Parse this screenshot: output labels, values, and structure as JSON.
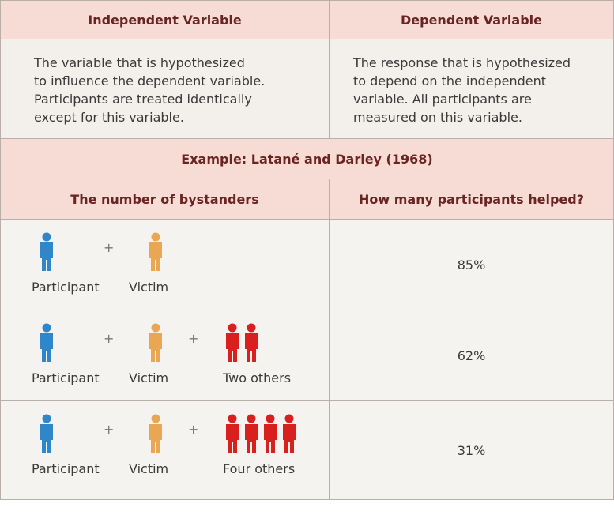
{
  "header": {
    "columns": [
      "Independent Variable",
      "Dependent Variable"
    ]
  },
  "definitions": [
    [
      "The variable that is hypothesized",
      "to influence the dependent variable.",
      "Participants are treated identically",
      "except for this variable."
    ],
    [
      "The response that is hypothesized",
      "to depend on the independent",
      "variable. All participants are",
      "measured on this variable."
    ]
  ],
  "example": {
    "title": "Example: Latané and Darley (1968)",
    "columns": [
      "The number of bystanders",
      "How many participants helped?"
    ],
    "rows": [
      {
        "labels": [
          "Participant",
          "Victim"
        ],
        "plus": [
          "+"
        ],
        "result": "85%"
      },
      {
        "labels": [
          "Participant",
          "Victim",
          "Two others"
        ],
        "plus": [
          "+",
          "+"
        ],
        "result": "62%"
      },
      {
        "labels": [
          "Participant",
          "Victim",
          "Four others"
        ],
        "plus": [
          "+",
          "+"
        ],
        "result": "31%"
      }
    ]
  }
}
